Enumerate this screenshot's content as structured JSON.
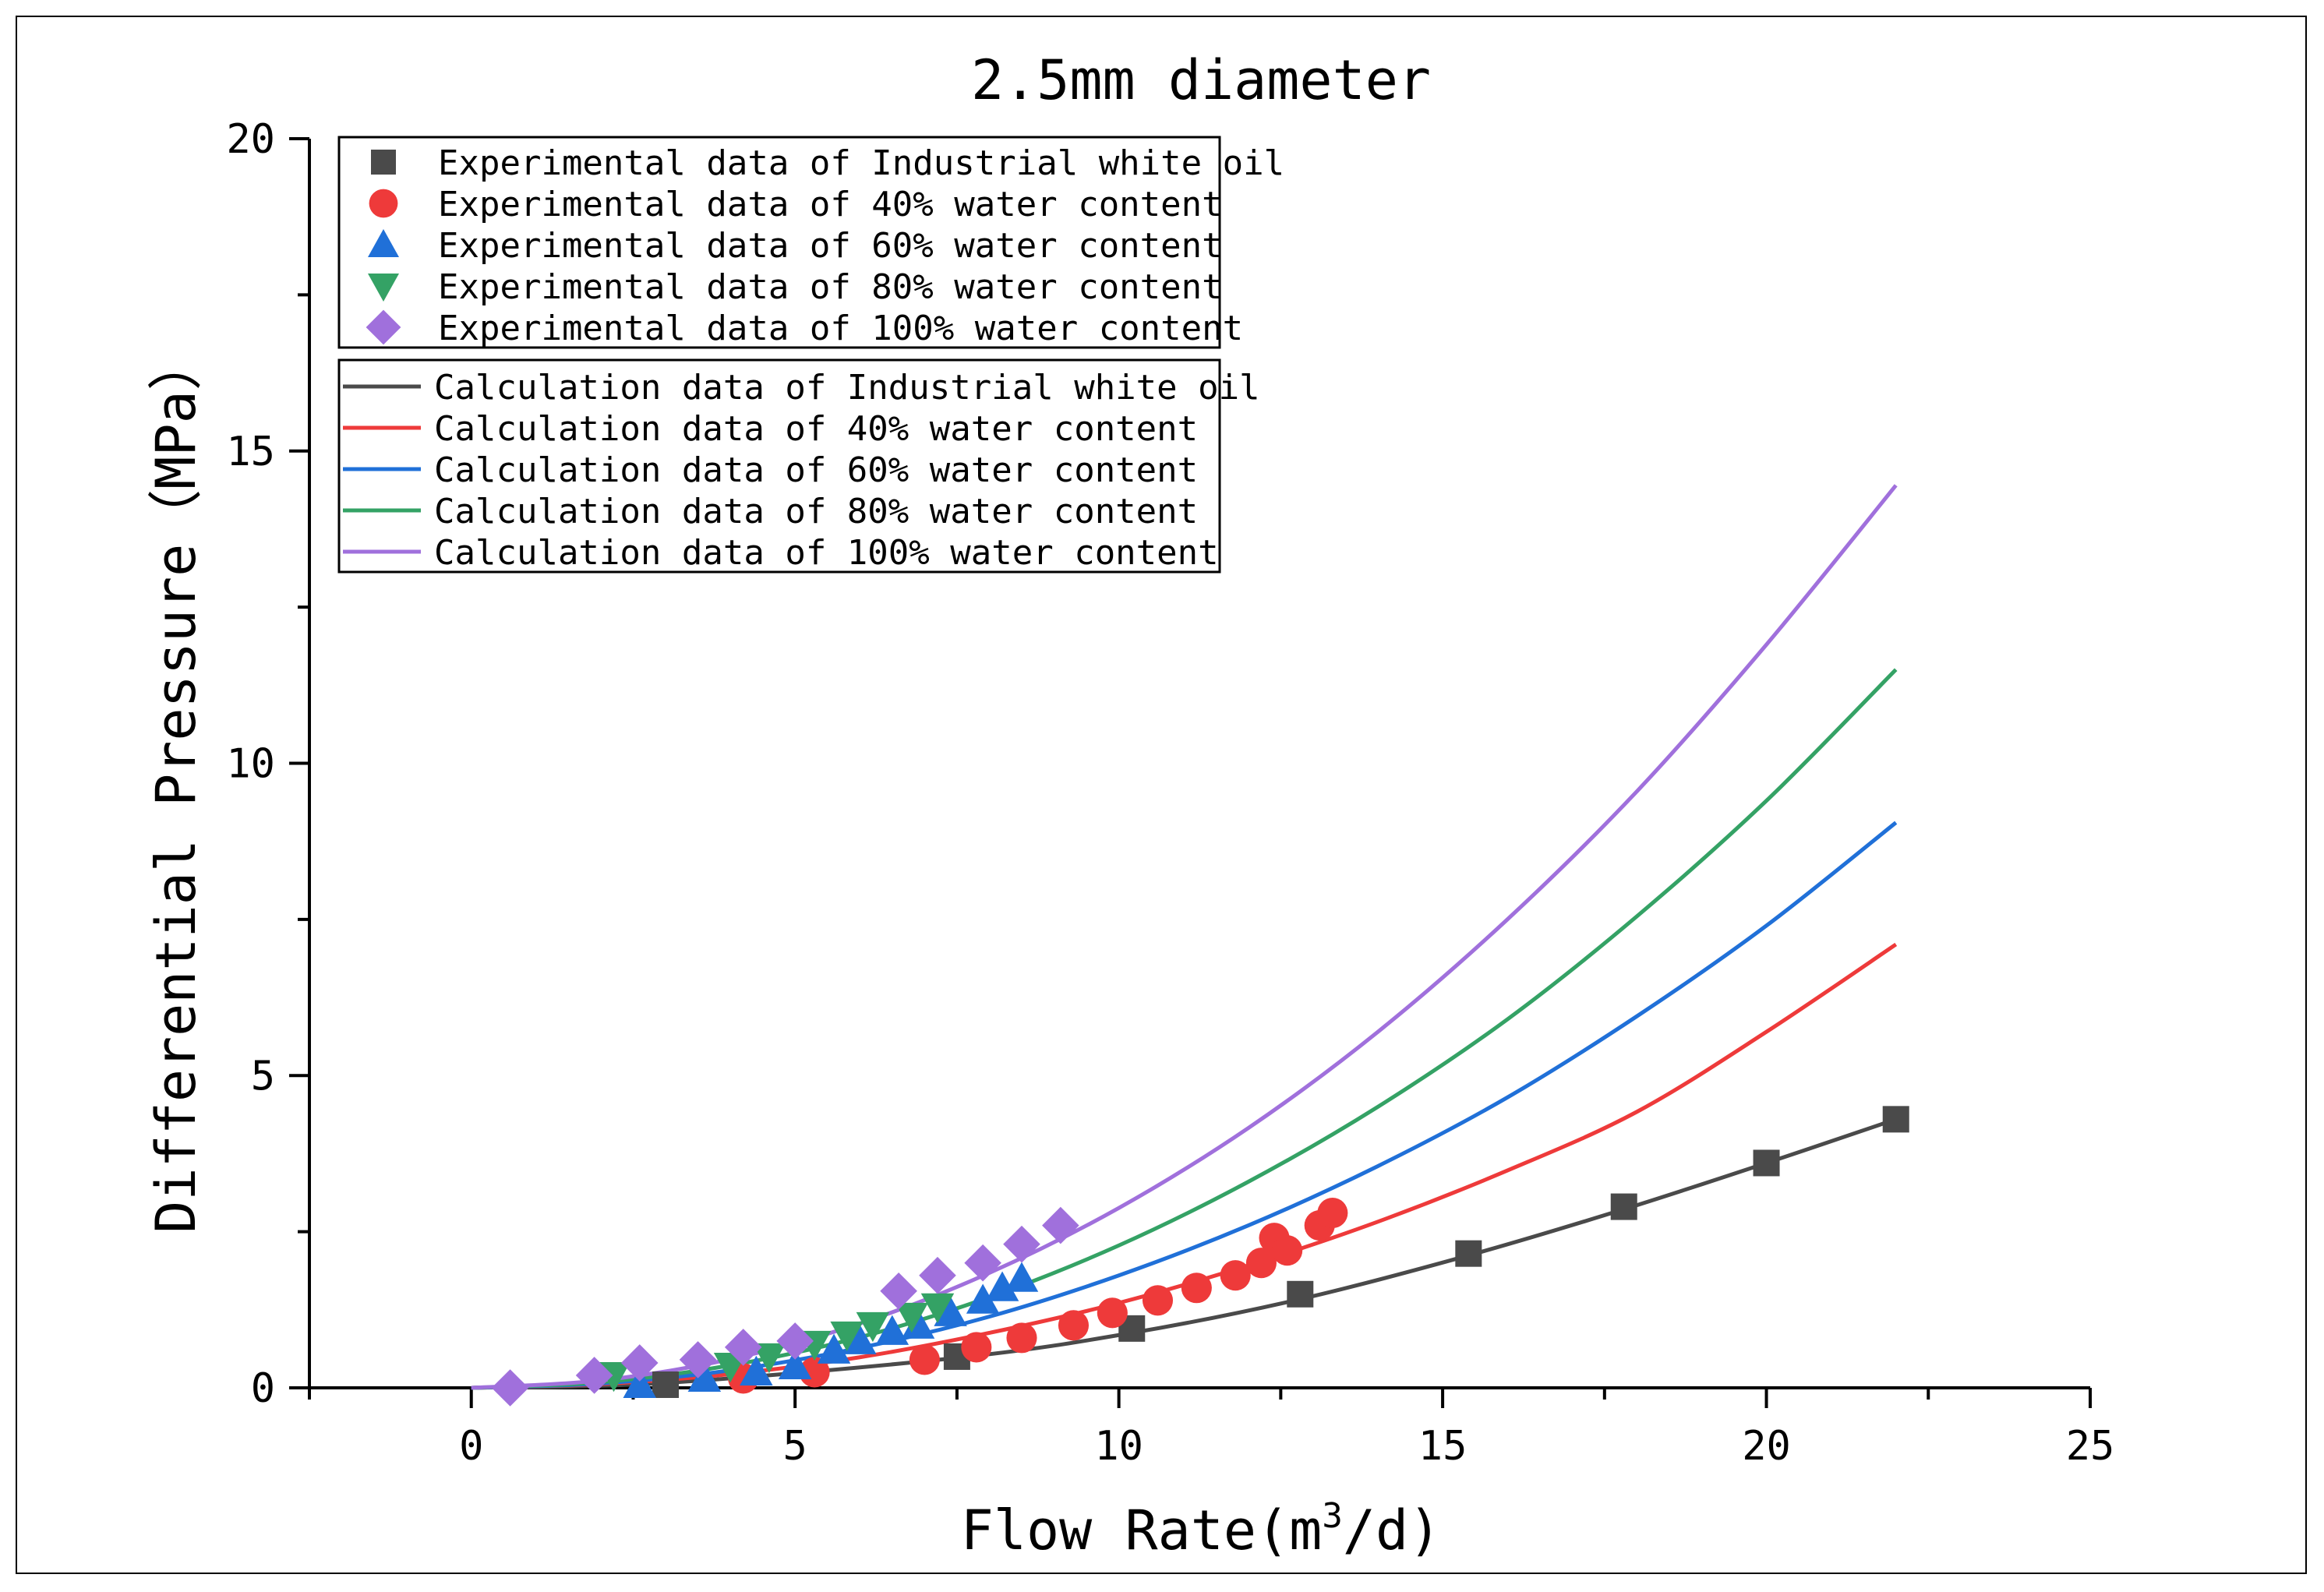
{
  "chart_data": {
    "type": "scatter",
    "title": "2.5mm diameter",
    "xlabel": "Flow Rate(m",
    "xlabel_sup": "3",
    "xlabel_end": "/d)",
    "ylabel": "Differential Pressure（MPa）",
    "xlim": [
      -2.5,
      25
    ],
    "ylim": [
      0,
      20
    ],
    "xticks": [
      0,
      5,
      10,
      15,
      20,
      25
    ],
    "yticks": [
      0,
      5,
      10,
      15,
      20
    ],
    "grid": false,
    "legend_position": "top-left",
    "experimental": [
      {
        "name": "Experimental data of Industrial white oil",
        "marker": "square",
        "color": "#4a4a4a",
        "x": [
          3.0,
          7.5,
          10.2,
          12.8,
          15.4,
          17.8,
          20.0,
          22.0
        ],
        "y": [
          0.05,
          0.5,
          0.95,
          1.5,
          2.15,
          2.9,
          3.6,
          4.3
        ]
      },
      {
        "name": "Experimental data of 40% water content",
        "marker": "circle",
        "color": "#ee3a3a",
        "x": [
          4.2,
          5.3,
          7.0,
          7.8,
          8.5,
          9.3,
          9.9,
          10.6,
          11.2,
          11.8,
          12.2,
          12.4,
          12.6,
          13.1,
          13.3
        ],
        "y": [
          0.15,
          0.25,
          0.45,
          0.65,
          0.8,
          1.0,
          1.2,
          1.4,
          1.6,
          1.8,
          2.0,
          2.4,
          2.2,
          2.6,
          2.8
        ]
      },
      {
        "name": "Experimental data of 60% water content",
        "marker": "triangle-up",
        "color": "#2070d8",
        "x": [
          2.6,
          3.6,
          4.4,
          5.0,
          5.6,
          6.0,
          6.5,
          6.9,
          7.4,
          7.9,
          8.2,
          8.5
        ],
        "y": [
          0.05,
          0.15,
          0.25,
          0.35,
          0.6,
          0.75,
          0.9,
          1.0,
          1.2,
          1.4,
          1.6,
          1.75
        ]
      },
      {
        "name": "Experimental data of 80% water content",
        "marker": "triangle-down",
        "color": "#34a265",
        "x": [
          2.2,
          4.0,
          4.6,
          5.3,
          5.8,
          6.2,
          6.8,
          7.2
        ],
        "y": [
          0.2,
          0.35,
          0.5,
          0.7,
          0.85,
          1.0,
          1.15,
          1.3
        ]
      },
      {
        "name": "Experimental data of 100% water content",
        "marker": "diamond",
        "color": "#a070dc",
        "x": [
          0.6,
          1.9,
          2.6,
          3.5,
          4.2,
          5.0,
          6.6,
          7.2,
          7.9,
          8.5,
          9.1
        ],
        "y": [
          0.0,
          0.2,
          0.4,
          0.45,
          0.65,
          0.75,
          1.55,
          1.8,
          2.0,
          2.3,
          2.6
        ]
      }
    ],
    "calculation": [
      {
        "name": "Calculation data of Industrial white oil",
        "color": "#4a4a4a",
        "x": [
          0,
          3,
          7.5,
          10.2,
          12.8,
          15.4,
          17.8,
          20,
          22
        ],
        "y": [
          0,
          0.08,
          0.48,
          0.88,
          1.42,
          2.12,
          2.86,
          3.6,
          4.3
        ]
      },
      {
        "name": "Calculation data of 40% water content",
        "color": "#ee3a3a",
        "x": [
          0,
          2,
          4,
          6,
          8,
          10,
          12,
          14,
          16,
          18,
          20,
          22
        ],
        "y": [
          0,
          0.06,
          0.22,
          0.49,
          0.88,
          1.36,
          1.96,
          2.66,
          3.48,
          4.42,
          5.7,
          7.1
        ]
      },
      {
        "name": "Calculation data of 60% water content",
        "color": "#2070d8",
        "x": [
          0,
          2,
          4,
          6,
          8,
          10,
          12,
          14,
          16,
          18,
          20,
          22
        ],
        "y": [
          0,
          0.07,
          0.28,
          0.64,
          1.14,
          1.8,
          2.6,
          3.55,
          4.65,
          5.95,
          7.4,
          9.05
        ]
      },
      {
        "name": "Calculation data of 80% water content",
        "color": "#34a265",
        "x": [
          0,
          2,
          4,
          6,
          8,
          10,
          12,
          14,
          16,
          18,
          20,
          22
        ],
        "y": [
          0,
          0.09,
          0.36,
          0.81,
          1.45,
          2.28,
          3.3,
          4.5,
          5.9,
          7.55,
          9.4,
          11.5
        ]
      },
      {
        "name": "Calculation data of 100% water content",
        "color": "#a070dc",
        "x": [
          0,
          2,
          4,
          6,
          8,
          10,
          12,
          14,
          16,
          18,
          20,
          22
        ],
        "y": [
          0,
          0.12,
          0.46,
          1.03,
          1.84,
          2.88,
          4.16,
          5.7,
          7.5,
          9.55,
          11.9,
          14.45
        ]
      }
    ]
  }
}
